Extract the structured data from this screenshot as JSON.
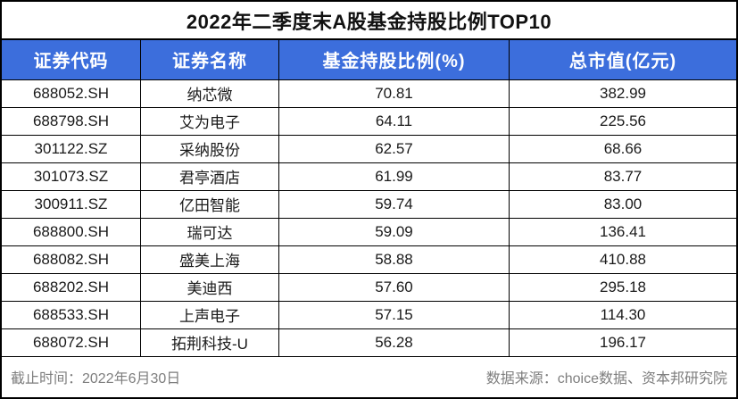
{
  "chart_data": {
    "type": "table",
    "title": "2022年二季度末A股基金持股比例TOP10",
    "columns": [
      "证券代码",
      "证券名称",
      "基金持股比例(%)",
      "总市值(亿元)"
    ],
    "rows": [
      {
        "code": "688052.SH",
        "name": "纳芯微",
        "ratio": "70.81",
        "market_cap": "382.99"
      },
      {
        "code": "688798.SH",
        "name": "艾为电子",
        "ratio": "64.11",
        "market_cap": "225.56"
      },
      {
        "code": "301122.SZ",
        "name": "采纳股份",
        "ratio": "62.57",
        "market_cap": "68.66"
      },
      {
        "code": "301073.SZ",
        "name": "君亭酒店",
        "ratio": "61.99",
        "market_cap": "83.77"
      },
      {
        "code": "300911.SZ",
        "name": "亿田智能",
        "ratio": "59.74",
        "market_cap": "83.00"
      },
      {
        "code": "688800.SH",
        "name": "瑞可达",
        "ratio": "59.09",
        "market_cap": "136.41"
      },
      {
        "code": "688082.SH",
        "name": "盛美上海",
        "ratio": "58.88",
        "market_cap": "410.88"
      },
      {
        "code": "688202.SH",
        "name": "美迪西",
        "ratio": "57.60",
        "market_cap": "295.18"
      },
      {
        "code": "688533.SH",
        "name": "上声电子",
        "ratio": "57.15",
        "market_cap": "114.30"
      },
      {
        "code": "688072.SH",
        "name": "拓荆科技-U",
        "ratio": "56.28",
        "market_cap": "196.17"
      }
    ]
  },
  "footer": {
    "cutoff": "截止时间：2022年6月30日",
    "source": "数据来源：choice数据、资本邦研究院"
  },
  "colors": {
    "header_bg": "#3c6edc",
    "header_text": "#ffffff",
    "border": "#000000",
    "body_text": "#1a1a1a",
    "footer_text": "#7e7e7e",
    "bg": "#ffffff"
  }
}
